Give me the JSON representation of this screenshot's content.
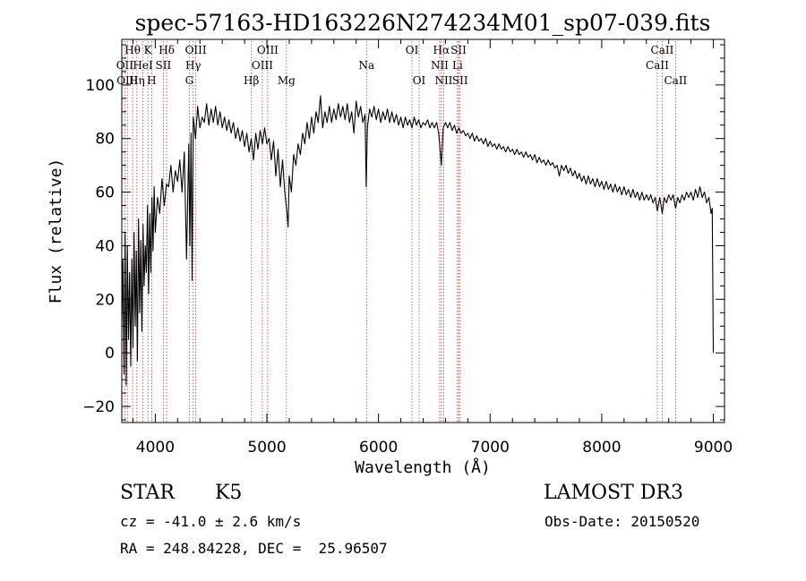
{
  "chart_data": {
    "type": "line",
    "title": "spec-57163-HD163226N274234M01_sp07-039.fits",
    "xlabel": "Wavelength (Å)",
    "ylabel": "Flux (relative)",
    "xlim": [
      3700,
      9100
    ],
    "ylim": [
      -26,
      117
    ],
    "xticks": [
      4000,
      5000,
      6000,
      7000,
      8000,
      9000
    ],
    "yticks": [
      -20,
      0,
      20,
      40,
      60,
      80,
      100
    ],
    "line_color": "#000000",
    "marker_color": "#c0392b",
    "grid": false,
    "series": [
      {
        "points": [
          [
            3700,
            10
          ],
          [
            3710,
            35
          ],
          [
            3720,
            -8
          ],
          [
            3730,
            45
          ],
          [
            3740,
            -12
          ],
          [
            3750,
            40
          ],
          [
            3760,
            5
          ],
          [
            3770,
            30
          ],
          [
            3780,
            -5
          ],
          [
            3790,
            35
          ],
          [
            3800,
            2
          ],
          [
            3810,
            45
          ],
          [
            3820,
            10
          ],
          [
            3830,
            38
          ],
          [
            3840,
            -3
          ],
          [
            3850,
            50
          ],
          [
            3860,
            15
          ],
          [
            3870,
            42
          ],
          [
            3880,
            8
          ],
          [
            3890,
            48
          ],
          [
            3900,
            25
          ],
          [
            3910,
            40
          ],
          [
            3920,
            30
          ],
          [
            3930,
            55
          ],
          [
            3940,
            22
          ],
          [
            3950,
            52
          ],
          [
            3960,
            30
          ],
          [
            3970,
            58
          ],
          [
            3980,
            38
          ],
          [
            3990,
            62
          ],
          [
            4000,
            45
          ],
          [
            4020,
            58
          ],
          [
            4040,
            52
          ],
          [
            4060,
            65
          ],
          [
            4080,
            55
          ],
          [
            4100,
            63
          ],
          [
            4120,
            62
          ],
          [
            4140,
            70
          ],
          [
            4160,
            60
          ],
          [
            4180,
            68
          ],
          [
            4200,
            64
          ],
          [
            4220,
            72
          ],
          [
            4240,
            60
          ],
          [
            4260,
            75
          ],
          [
            4280,
            35
          ],
          [
            4300,
            78
          ],
          [
            4310,
            40
          ],
          [
            4320,
            82
          ],
          [
            4330,
            27
          ],
          [
            4340,
            88
          ],
          [
            4360,
            80
          ],
          [
            4380,
            92
          ],
          [
            4400,
            84
          ],
          [
            4420,
            88
          ],
          [
            4440,
            86
          ],
          [
            4460,
            93
          ],
          [
            4480,
            85
          ],
          [
            4500,
            91
          ],
          [
            4520,
            86
          ],
          [
            4540,
            92
          ],
          [
            4560,
            85
          ],
          [
            4580,
            90
          ],
          [
            4600,
            84
          ],
          [
            4620,
            88
          ],
          [
            4640,
            83
          ],
          [
            4660,
            87
          ],
          [
            4680,
            82
          ],
          [
            4700,
            86
          ],
          [
            4720,
            80
          ],
          [
            4740,
            84
          ],
          [
            4760,
            79
          ],
          [
            4780,
            83
          ],
          [
            4800,
            77
          ],
          [
            4820,
            82
          ],
          [
            4840,
            75
          ],
          [
            4860,
            80
          ],
          [
            4880,
            72
          ],
          [
            4900,
            82
          ],
          [
            4920,
            76
          ],
          [
            4940,
            83
          ],
          [
            4960,
            78
          ],
          [
            4980,
            84
          ],
          [
            5000,
            78
          ],
          [
            5020,
            80
          ],
          [
            5040,
            72
          ],
          [
            5060,
            79
          ],
          [
            5080,
            66
          ],
          [
            5100,
            76
          ],
          [
            5120,
            62
          ],
          [
            5140,
            72
          ],
          [
            5160,
            60
          ],
          [
            5180,
            52
          ],
          [
            5190,
            47
          ],
          [
            5200,
            66
          ],
          [
            5220,
            60
          ],
          [
            5240,
            74
          ],
          [
            5260,
            70
          ],
          [
            5280,
            78
          ],
          [
            5300,
            74
          ],
          [
            5320,
            82
          ],
          [
            5340,
            78
          ],
          [
            5360,
            86
          ],
          [
            5380,
            80
          ],
          [
            5400,
            88
          ],
          [
            5420,
            82
          ],
          [
            5440,
            90
          ],
          [
            5460,
            86
          ],
          [
            5480,
            96
          ],
          [
            5500,
            84
          ],
          [
            5520,
            90
          ],
          [
            5540,
            86
          ],
          [
            5560,
            92
          ],
          [
            5580,
            86
          ],
          [
            5600,
            91
          ],
          [
            5620,
            87
          ],
          [
            5640,
            93
          ],
          [
            5660,
            88
          ],
          [
            5680,
            92
          ],
          [
            5700,
            87
          ],
          [
            5720,
            93
          ],
          [
            5740,
            86
          ],
          [
            5760,
            90
          ],
          [
            5780,
            82
          ],
          [
            5800,
            94
          ],
          [
            5820,
            88
          ],
          [
            5840,
            92
          ],
          [
            5860,
            86
          ],
          [
            5880,
            89
          ],
          [
            5890,
            62
          ],
          [
            5900,
            84
          ],
          [
            5920,
            91
          ],
          [
            5940,
            88
          ],
          [
            5960,
            92
          ],
          [
            5980,
            87
          ],
          [
            6000,
            91
          ],
          [
            6020,
            86
          ],
          [
            6040,
            90
          ],
          [
            6060,
            87
          ],
          [
            6080,
            91
          ],
          [
            6100,
            86
          ],
          [
            6120,
            90
          ],
          [
            6140,
            86
          ],
          [
            6160,
            89
          ],
          [
            6180,
            85
          ],
          [
            6200,
            88
          ],
          [
            6220,
            84
          ],
          [
            6240,
            88
          ],
          [
            6260,
            85
          ],
          [
            6280,
            87
          ],
          [
            6300,
            84
          ],
          [
            6320,
            88
          ],
          [
            6340,
            85
          ],
          [
            6360,
            87
          ],
          [
            6380,
            84
          ],
          [
            6400,
            86
          ],
          [
            6420,
            85
          ],
          [
            6440,
            87
          ],
          [
            6460,
            84
          ],
          [
            6480,
            86
          ],
          [
            6500,
            84
          ],
          [
            6520,
            86
          ],
          [
            6540,
            82
          ],
          [
            6563,
            70
          ],
          [
            6580,
            84
          ],
          [
            6600,
            86
          ],
          [
            6620,
            84
          ],
          [
            6640,
            86
          ],
          [
            6660,
            83
          ],
          [
            6680,
            85
          ],
          [
            6700,
            82
          ],
          [
            6720,
            84
          ],
          [
            6740,
            82
          ],
          [
            6760,
            83
          ],
          [
            6780,
            81
          ],
          [
            6800,
            82
          ],
          [
            6820,
            80
          ],
          [
            6840,
            82
          ],
          [
            6860,
            79
          ],
          [
            6880,
            81
          ],
          [
            6900,
            79
          ],
          [
            6920,
            80
          ],
          [
            6940,
            78
          ],
          [
            6960,
            80
          ],
          [
            6980,
            77
          ],
          [
            7000,
            79
          ],
          [
            7020,
            77
          ],
          [
            7040,
            78
          ],
          [
            7060,
            76
          ],
          [
            7080,
            78
          ],
          [
            7100,
            76
          ],
          [
            7120,
            77
          ],
          [
            7140,
            75
          ],
          [
            7160,
            77
          ],
          [
            7180,
            75
          ],
          [
            7200,
            76
          ],
          [
            7220,
            74
          ],
          [
            7240,
            76
          ],
          [
            7260,
            74
          ],
          [
            7280,
            75
          ],
          [
            7300,
            73
          ],
          [
            7320,
            75
          ],
          [
            7340,
            73
          ],
          [
            7360,
            74
          ],
          [
            7380,
            72
          ],
          [
            7400,
            74
          ],
          [
            7420,
            71
          ],
          [
            7440,
            73
          ],
          [
            7460,
            71
          ],
          [
            7480,
            72
          ],
          [
            7500,
            70
          ],
          [
            7520,
            72
          ],
          [
            7540,
            70
          ],
          [
            7560,
            71
          ],
          [
            7580,
            69
          ],
          [
            7600,
            70
          ],
          [
            7620,
            66
          ],
          [
            7640,
            70
          ],
          [
            7660,
            68
          ],
          [
            7680,
            70
          ],
          [
            7700,
            67
          ],
          [
            7720,
            69
          ],
          [
            7740,
            66
          ],
          [
            7760,
            68
          ],
          [
            7780,
            65
          ],
          [
            7800,
            67
          ],
          [
            7820,
            64
          ],
          [
            7840,
            66
          ],
          [
            7860,
            63
          ],
          [
            7880,
            66
          ],
          [
            7900,
            63
          ],
          [
            7920,
            65
          ],
          [
            7940,
            62
          ],
          [
            7960,
            65
          ],
          [
            7980,
            62
          ],
          [
            8000,
            64
          ],
          [
            8020,
            61
          ],
          [
            8040,
            64
          ],
          [
            8060,
            61
          ],
          [
            8080,
            63
          ],
          [
            8100,
            60
          ],
          [
            8120,
            63
          ],
          [
            8140,
            60
          ],
          [
            8160,
            62
          ],
          [
            8180,
            59
          ],
          [
            8200,
            62
          ],
          [
            8220,
            59
          ],
          [
            8240,
            61
          ],
          [
            8260,
            58
          ],
          [
            8280,
            61
          ],
          [
            8300,
            58
          ],
          [
            8320,
            60
          ],
          [
            8340,
            57
          ],
          [
            8360,
            60
          ],
          [
            8380,
            57
          ],
          [
            8400,
            59
          ],
          [
            8420,
            57
          ],
          [
            8440,
            59
          ],
          [
            8460,
            56
          ],
          [
            8480,
            58
          ],
          [
            8498,
            53
          ],
          [
            8520,
            58
          ],
          [
            8542,
            52
          ],
          [
            8560,
            58
          ],
          [
            8580,
            56
          ],
          [
            8600,
            59
          ],
          [
            8620,
            57
          ],
          [
            8640,
            59
          ],
          [
            8662,
            54
          ],
          [
            8680,
            58
          ],
          [
            8700,
            56
          ],
          [
            8720,
            59
          ],
          [
            8740,
            57
          ],
          [
            8760,
            60
          ],
          [
            8780,
            58
          ],
          [
            8800,
            60
          ],
          [
            8820,
            57
          ],
          [
            8840,
            61
          ],
          [
            8860,
            58
          ],
          [
            8880,
            62
          ],
          [
            8900,
            58
          ],
          [
            8920,
            60
          ],
          [
            8940,
            56
          ],
          [
            8960,
            58
          ],
          [
            8980,
            52
          ],
          [
            8990,
            54
          ],
          [
            9000,
            0
          ]
        ]
      }
    ],
    "lines": [
      {
        "label": "Hθ",
        "x": 3797,
        "row": 0
      },
      {
        "label": "OII",
        "x": 3727,
        "row": 1
      },
      {
        "label": "OIII",
        "x": 3750,
        "row": 2
      },
      {
        "label": "K",
        "x": 3934,
        "row": 0
      },
      {
        "label": "HeI",
        "x": 3889,
        "row": 1
      },
      {
        "label": "Hη",
        "x": 3835,
        "row": 2
      },
      {
        "label": "Hδ",
        "x": 4102,
        "row": 0
      },
      {
        "label": "SII",
        "x": 4072,
        "row": 1
      },
      {
        "label": "H",
        "x": 3968,
        "row": 2
      },
      {
        "label": "OIII",
        "x": 4363,
        "row": 0
      },
      {
        "label": "Hγ",
        "x": 4340,
        "row": 1
      },
      {
        "label": "G",
        "x": 4305,
        "row": 2
      },
      {
        "label": "OIII",
        "x": 5007,
        "row": 0
      },
      {
        "label": "OIII",
        "x": 4959,
        "row": 1
      },
      {
        "label": "Hβ",
        "x": 4861,
        "row": 2
      },
      {
        "label": "Mg",
        "x": 5175,
        "row": 2
      },
      {
        "label": "Na",
        "x": 5893,
        "row": 1
      },
      {
        "label": "OI",
        "x": 6300,
        "row": 0
      },
      {
        "label": "OI",
        "x": 6364,
        "row": 2
      },
      {
        "label": "Hα",
        "x": 6563,
        "row": 0
      },
      {
        "label": "NII",
        "x": 6548,
        "row": 1
      },
      {
        "label": "NII",
        "x": 6584,
        "row": 2
      },
      {
        "label": "SII",
        "x": 6717,
        "row": 0
      },
      {
        "label": "Li",
        "x": 6708,
        "row": 1
      },
      {
        "label": "SII",
        "x": 6731,
        "row": 2
      },
      {
        "label": "CaII",
        "x": 8542,
        "row": 0
      },
      {
        "label": "CaII",
        "x": 8498,
        "row": 1
      },
      {
        "label": "CaII",
        "x": 8662,
        "row": 2
      }
    ]
  },
  "info": {
    "object_class": "STAR",
    "subclass": "K5",
    "survey": "LAMOST DR3",
    "redshift": "cz = -41.0 ± 2.6 km/s",
    "obs_date": "Obs-Date: 20150520",
    "coords": "RA = 248.84228, DEC =  25.96507"
  }
}
